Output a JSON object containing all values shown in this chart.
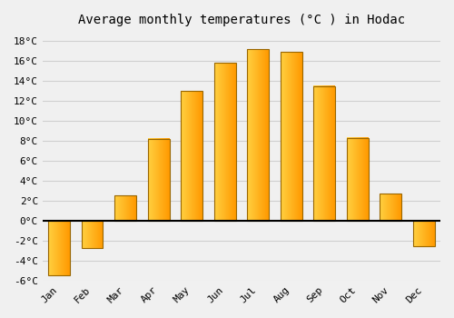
{
  "title": "Average monthly temperatures (°C ) in Hodac",
  "months": [
    "Jan",
    "Feb",
    "Mar",
    "Apr",
    "May",
    "Jun",
    "Jul",
    "Aug",
    "Sep",
    "Oct",
    "Nov",
    "Dec"
  ],
  "values": [
    -5.5,
    -2.7,
    2.5,
    8.2,
    13.0,
    15.8,
    17.2,
    16.9,
    13.5,
    8.3,
    2.7,
    -2.6
  ],
  "bar_color_left": "#FFD040",
  "bar_color_right": "#FF9900",
  "bar_edge_color": "#996600",
  "ylim": [
    -6,
    19
  ],
  "yticks": [
    -6,
    -4,
    -2,
    0,
    2,
    4,
    6,
    8,
    10,
    12,
    14,
    16,
    18
  ],
  "ytick_labels": [
    "-6°C",
    "-4°C",
    "-2°C",
    "0°C",
    "2°C",
    "4°C",
    "6°C",
    "8°C",
    "10°C",
    "12°C",
    "14°C",
    "16°C",
    "18°C"
  ],
  "background_color": "#f0f0f0",
  "grid_color": "#d0d0d0",
  "title_fontsize": 10,
  "tick_fontsize": 8,
  "bar_width": 0.65
}
